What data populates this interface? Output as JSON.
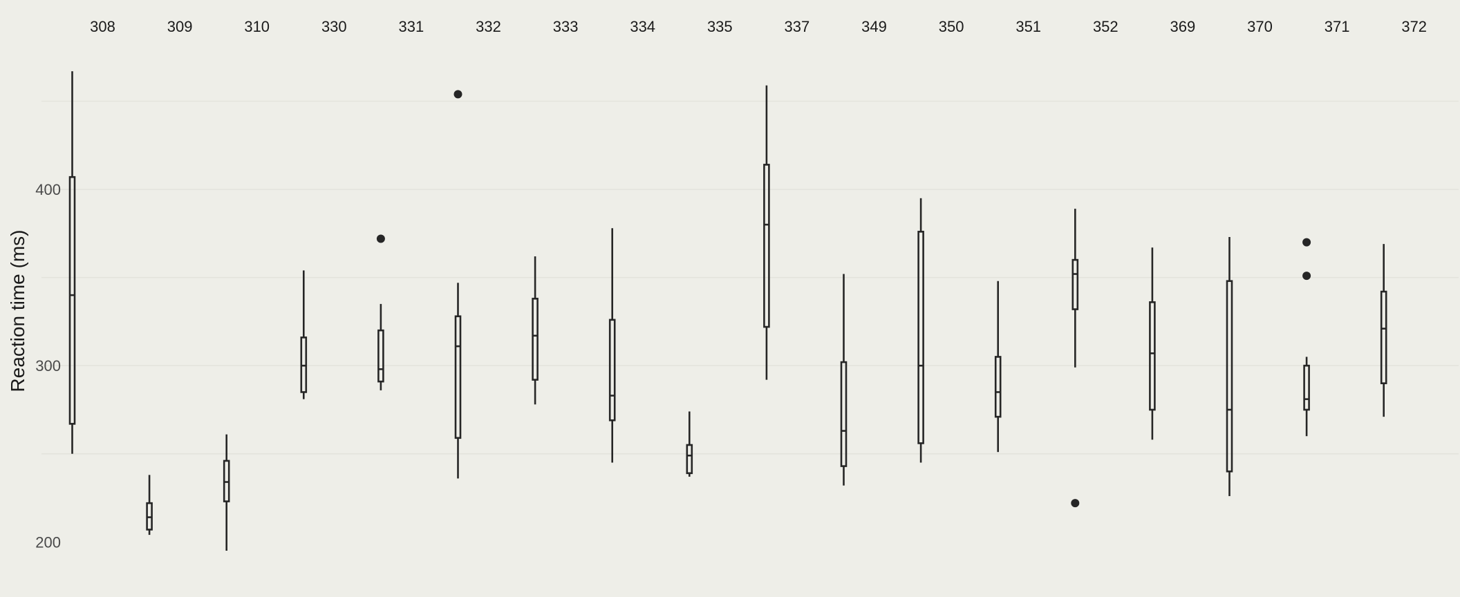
{
  "chart_data": {
    "type": "boxplot",
    "title": "",
    "xlabel": "",
    "ylabel": "Reaction time (ms)",
    "ylim": [
      186,
      480
    ],
    "yticks": [
      200,
      300,
      400
    ],
    "grid": true,
    "legend": "none",
    "colors": {
      "background": "#eeeee8",
      "grid": "#e3e3dc",
      "mark": "#262626"
    },
    "facets": [
      {
        "label": "308",
        "whisker_low": 250,
        "q1": 267,
        "median": 340,
        "q3": 407,
        "whisker_high": 467,
        "outliers": []
      },
      {
        "label": "309",
        "whisker_low": 204,
        "q1": 207,
        "median": 214,
        "q3": 222,
        "whisker_high": 238,
        "outliers": []
      },
      {
        "label": "310",
        "whisker_low": 195,
        "q1": 223,
        "median": 234,
        "q3": 246,
        "whisker_high": 261,
        "outliers": []
      },
      {
        "label": "330",
        "whisker_low": 281,
        "q1": 285,
        "median": 300,
        "q3": 316,
        "whisker_high": 354,
        "outliers": []
      },
      {
        "label": "331",
        "whisker_low": 286,
        "q1": 291,
        "median": 298,
        "q3": 320,
        "whisker_high": 335,
        "outliers": [
          372
        ]
      },
      {
        "label": "332",
        "whisker_low": 236,
        "q1": 259,
        "median": 311,
        "q3": 328,
        "whisker_high": 347,
        "outliers": [
          454
        ]
      },
      {
        "label": "333",
        "whisker_low": 278,
        "q1": 292,
        "median": 317,
        "q3": 338,
        "whisker_high": 362,
        "outliers": []
      },
      {
        "label": "334",
        "whisker_low": 245,
        "q1": 269,
        "median": 283,
        "q3": 326,
        "whisker_high": 378,
        "outliers": []
      },
      {
        "label": "335",
        "whisker_low": 237,
        "q1": 239,
        "median": 249,
        "q3": 255,
        "whisker_high": 274,
        "outliers": []
      },
      {
        "label": "337",
        "whisker_low": 292,
        "q1": 322,
        "median": 380,
        "q3": 414,
        "whisker_high": 459,
        "outliers": []
      },
      {
        "label": "349",
        "whisker_low": 232,
        "q1": 243,
        "median": 263,
        "q3": 302,
        "whisker_high": 352,
        "outliers": []
      },
      {
        "label": "350",
        "whisker_low": 245,
        "q1": 256,
        "median": 300,
        "q3": 376,
        "whisker_high": 395,
        "outliers": []
      },
      {
        "label": "351",
        "whisker_low": 251,
        "q1": 271,
        "median": 285,
        "q3": 305,
        "whisker_high": 348,
        "outliers": []
      },
      {
        "label": "352",
        "whisker_low": 299,
        "q1": 332,
        "median": 352,
        "q3": 360,
        "whisker_high": 389,
        "outliers": [
          222
        ]
      },
      {
        "label": "369",
        "whisker_low": 258,
        "q1": 275,
        "median": 307,
        "q3": 336,
        "whisker_high": 367,
        "outliers": []
      },
      {
        "label": "370",
        "whisker_low": 226,
        "q1": 240,
        "median": 275,
        "q3": 348,
        "whisker_high": 373,
        "outliers": []
      },
      {
        "label": "371",
        "whisker_low": 260,
        "q1": 275,
        "median": 281,
        "q3": 300,
        "whisker_high": 305,
        "outliers": [
          370,
          351
        ]
      },
      {
        "label": "372",
        "whisker_low": 271,
        "q1": 290,
        "median": 321,
        "q3": 342,
        "whisker_high": 369,
        "outliers": []
      }
    ]
  }
}
